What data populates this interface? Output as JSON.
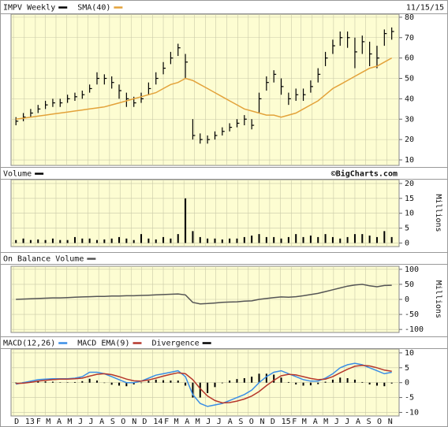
{
  "chart_data": [
    {
      "type": "ohlc",
      "date": "11/15/15",
      "x": [
        1,
        4,
        7,
        10,
        13,
        16,
        19,
        22,
        25,
        28,
        31,
        34,
        37,
        40,
        43,
        46,
        49,
        52,
        55,
        58,
        61,
        64,
        67,
        70,
        73,
        76,
        79,
        82,
        85,
        88,
        91,
        94,
        97,
        100,
        103,
        106,
        109,
        112,
        115,
        118,
        121,
        124,
        127,
        130,
        133,
        136,
        139,
        142,
        145,
        148,
        151,
        154
      ],
      "xlim": [
        -1,
        157
      ],
      "ylim": [
        7.3,
        81.5
      ],
      "yticks": [
        10,
        20,
        30,
        40,
        50,
        60,
        70,
        80
      ],
      "grid": true,
      "series": [
        {
          "name": "IMPV Weekly",
          "color": "#000000",
          "high": [
            31,
            33,
            35,
            37,
            39,
            40,
            40,
            42,
            43,
            44,
            47,
            53,
            52,
            51,
            47,
            43,
            41,
            43,
            48,
            53,
            58,
            63,
            67,
            62,
            30,
            23,
            22,
            24,
            26,
            28,
            30,
            32,
            30,
            43,
            51,
            54,
            50,
            43,
            45,
            45,
            49,
            55,
            63,
            69,
            73,
            73,
            70,
            71,
            68,
            66,
            74,
            75
          ],
          "low": [
            27,
            29,
            31,
            33,
            35,
            36,
            36,
            38,
            39,
            40,
            43,
            47,
            47,
            45,
            40,
            36,
            36,
            38,
            42,
            47,
            52,
            57,
            61,
            50,
            20,
            18,
            18,
            20,
            22,
            24,
            26,
            27,
            25,
            33,
            44,
            48,
            42,
            37,
            39,
            39,
            43,
            48,
            56,
            62,
            66,
            65,
            55,
            62,
            56,
            55,
            66,
            69
          ],
          "close": [
            29,
            31,
            33,
            35,
            37,
            38,
            38,
            40,
            41,
            42,
            45,
            50,
            50,
            48,
            44,
            40,
            38,
            40,
            45,
            50,
            55,
            60,
            65,
            58,
            22,
            20,
            20,
            22,
            24,
            26,
            28,
            30,
            27,
            40,
            48,
            52,
            46,
            40,
            42,
            42,
            46,
            52,
            60,
            66,
            70,
            70,
            63,
            68,
            62,
            60,
            72,
            73
          ]
        },
        {
          "name": "SMA(40)",
          "color": "#e3a23a",
          "type": "line",
          "values": [
            30,
            30.5,
            31,
            31.5,
            32,
            32.5,
            33,
            33.5,
            34,
            34.5,
            35,
            35.5,
            36,
            37,
            38,
            39,
            40,
            41,
            42,
            43,
            45,
            47,
            48,
            50,
            49,
            47,
            45,
            43,
            41,
            39,
            37,
            35,
            34,
            33,
            32,
            32,
            31,
            32,
            33,
            35,
            37,
            39,
            42,
            45,
            47,
            49,
            51,
            53,
            55,
            56,
            58,
            60
          ]
        }
      ]
    },
    {
      "type": "bar",
      "note": "©BigCharts.com",
      "ylabel": "Millions",
      "ylim": [
        -1.2,
        21.3
      ],
      "yticks": [
        0,
        5,
        10,
        15,
        20
      ],
      "grid": true,
      "series": [
        {
          "name": "Volume",
          "color": "#000000",
          "values": [
            1,
            1.5,
            1,
            1.2,
            1,
            1.5,
            1,
            1,
            2,
            1.5,
            1.5,
            1,
            1.2,
            1.5,
            2,
            1.5,
            1,
            3,
            1.5,
            1.2,
            2,
            1.5,
            3,
            15,
            4,
            2,
            1.5,
            1.5,
            1.2,
            1.5,
            1.5,
            2,
            2.5,
            3,
            2,
            2,
            1.5,
            2,
            3,
            2,
            2.5,
            2,
            3,
            2,
            1.5,
            2,
            3,
            3,
            2.5,
            2,
            4,
            2
          ]
        }
      ]
    },
    {
      "type": "line",
      "ylabel": "Millions",
      "ylim": [
        -110,
        110
      ],
      "yticks": [
        100,
        50,
        0,
        -50,
        -100
      ],
      "grid": true,
      "series": [
        {
          "name": "On Balance Volume",
          "color": "#555555",
          "values": [
            0,
            1,
            2,
            3,
            4,
            5,
            5,
            6,
            7,
            8,
            9,
            10,
            10,
            11,
            11,
            12,
            12,
            13,
            14,
            15,
            16,
            17,
            18,
            15,
            -10,
            -15,
            -14,
            -12,
            -10,
            -9,
            -8,
            -6,
            -5,
            0,
            3,
            6,
            8,
            7,
            9,
            12,
            16,
            20,
            26,
            32,
            38,
            44,
            48,
            50,
            45,
            42,
            46,
            47
          ]
        }
      ]
    },
    {
      "type": "line",
      "ylim": [
        -11.2,
        11.3
      ],
      "yticks": [
        10,
        5,
        0,
        -5,
        -10
      ],
      "grid": true,
      "xticks": [
        {
          "value": 0,
          "label": "D"
        },
        {
          "value": 4.4,
          "label": "13"
        },
        {
          "value": 8.9,
          "label": "F"
        },
        {
          "value": 12.9,
          "label": "M"
        },
        {
          "value": 17.3,
          "label": "A"
        },
        {
          "value": 21.6,
          "label": "M"
        },
        {
          "value": 26,
          "label": "J"
        },
        {
          "value": 30.3,
          "label": "J"
        },
        {
          "value": 34.7,
          "label": "A"
        },
        {
          "value": 39.1,
          "label": "S"
        },
        {
          "value": 43.4,
          "label": "O"
        },
        {
          "value": 47.9,
          "label": "N"
        },
        {
          "value": 52.1,
          "label": "D"
        },
        {
          "value": 56.6,
          "label": "14"
        },
        {
          "value": 61,
          "label": "F"
        },
        {
          "value": 65,
          "label": "M"
        },
        {
          "value": 69.4,
          "label": "A"
        },
        {
          "value": 73.7,
          "label": "M"
        },
        {
          "value": 78.1,
          "label": "J"
        },
        {
          "value": 82.4,
          "label": "J"
        },
        {
          "value": 86.9,
          "label": "A"
        },
        {
          "value": 91.3,
          "label": "S"
        },
        {
          "value": 95.6,
          "label": "O"
        },
        {
          "value": 100,
          "label": "N"
        },
        {
          "value": 104.3,
          "label": "D"
        },
        {
          "value": 108.7,
          "label": "15"
        },
        {
          "value": 113.1,
          "label": "F"
        },
        {
          "value": 117.1,
          "label": "M"
        },
        {
          "value": 121.6,
          "label": "A"
        },
        {
          "value": 125.9,
          "label": "M"
        },
        {
          "value": 130.3,
          "label": "J"
        },
        {
          "value": 134.6,
          "label": "J"
        },
        {
          "value": 139,
          "label": "A"
        },
        {
          "value": 143.4,
          "label": "S"
        },
        {
          "value": 147.7,
          "label": "O"
        },
        {
          "value": 152.1,
          "label": "N"
        }
      ],
      "series": [
        {
          "name": "MACD(12,26)",
          "color": "#3a8ee6",
          "values": [
            -0.5,
            0,
            0.5,
            1,
            1.2,
            1.3,
            1.3,
            1.3,
            1.5,
            2,
            3.5,
            3.5,
            3,
            2,
            1,
            0,
            0,
            0.5,
            1.5,
            2.5,
            3,
            3.5,
            4,
            2,
            -4,
            -7,
            -8,
            -7.5,
            -7,
            -6,
            -5,
            -4,
            -2.5,
            0,
            2,
            3.5,
            4,
            3,
            2,
            1,
            0.5,
            0.5,
            1.5,
            3,
            5,
            6,
            6.5,
            6,
            5,
            4,
            3,
            3.5
          ]
        },
        {
          "name": "MACD EMA(9)",
          "color": "#b5372c",
          "values": [
            -0.3,
            -0.2,
            0.1,
            0.5,
            0.8,
            1,
            1.2,
            1.2,
            1.3,
            1.5,
            2.2,
            2.8,
            3,
            2.7,
            2,
            1.2,
            0.6,
            0.5,
            0.9,
            1.5,
            2.2,
            2.8,
            3.3,
            3,
            1,
            -2,
            -4.5,
            -6,
            -6.8,
            -6.7,
            -6.2,
            -5.5,
            -4.5,
            -3,
            -1,
            0.8,
            2.3,
            2.8,
            2.6,
            2,
            1.4,
            1,
            1.2,
            2,
            3.3,
            4.5,
            5.5,
            5.8,
            5.6,
            5,
            4.2,
            3.8
          ]
        },
        {
          "name": "Divergence",
          "color": "#000000",
          "type": "bar",
          "values": [
            -0.2,
            0.2,
            0.4,
            0.5,
            0.4,
            0.3,
            0.1,
            0.1,
            0.2,
            0.5,
            1.3,
            0.7,
            0,
            -0.7,
            -1,
            -1.2,
            -0.6,
            0,
            0.6,
            1,
            0.8,
            0.7,
            0.7,
            -1,
            -5,
            -5,
            -3.5,
            -1.5,
            -0.2,
            0.7,
            1.2,
            1.5,
            2,
            3,
            3,
            2.7,
            1.7,
            0.2,
            -0.6,
            -1,
            -0.9,
            -0.5,
            0.3,
            1,
            1.7,
            1.5,
            1,
            0.2,
            -0.6,
            -1,
            -1.2,
            -0.3
          ]
        }
      ]
    }
  ]
}
